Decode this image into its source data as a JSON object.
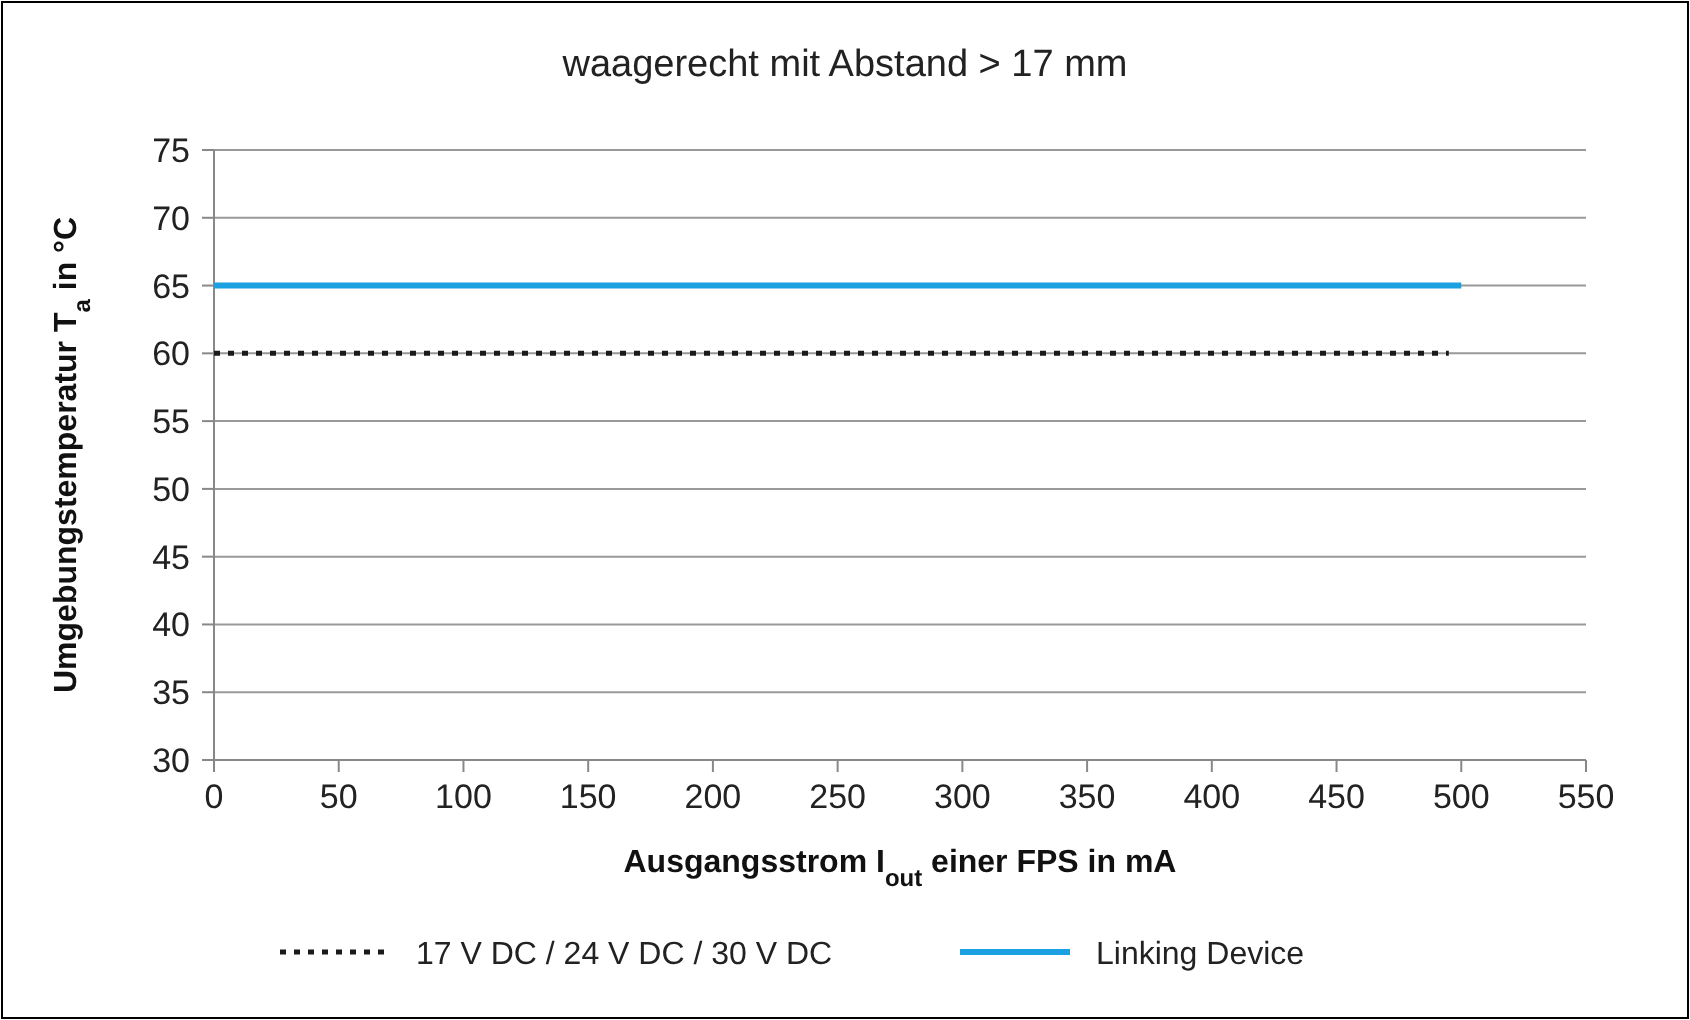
{
  "chart_data": {
    "type": "line",
    "title": "waagerecht mit Abstand > 17 mm",
    "xlabel": "Ausgangsstrom I$_{out}$ einer FPS in mA",
    "ylabel": "Umgebungstemperatur T$_{a}$ in °C",
    "xlim": [
      0,
      550
    ],
    "xticks": [
      0,
      50,
      100,
      150,
      200,
      250,
      300,
      350,
      400,
      450,
      500,
      550
    ],
    "ylim": [
      30,
      75
    ],
    "yticks": [
      30,
      35,
      40,
      45,
      50,
      55,
      60,
      65,
      70,
      75
    ],
    "grid": "y",
    "legend": "bottom",
    "series": [
      {
        "name": "17 V DC / 24 V DC / 30 V DC",
        "color": "#1a1a1a",
        "x": [
          0,
          495
        ],
        "values": [
          60,
          60
        ],
        "line_style": "dotted"
      },
      {
        "name": "Linking Device",
        "color": "#1ba1e2",
        "x": [
          0,
          500
        ],
        "values": [
          65,
          65
        ],
        "line_style": "solid"
      }
    ]
  }
}
